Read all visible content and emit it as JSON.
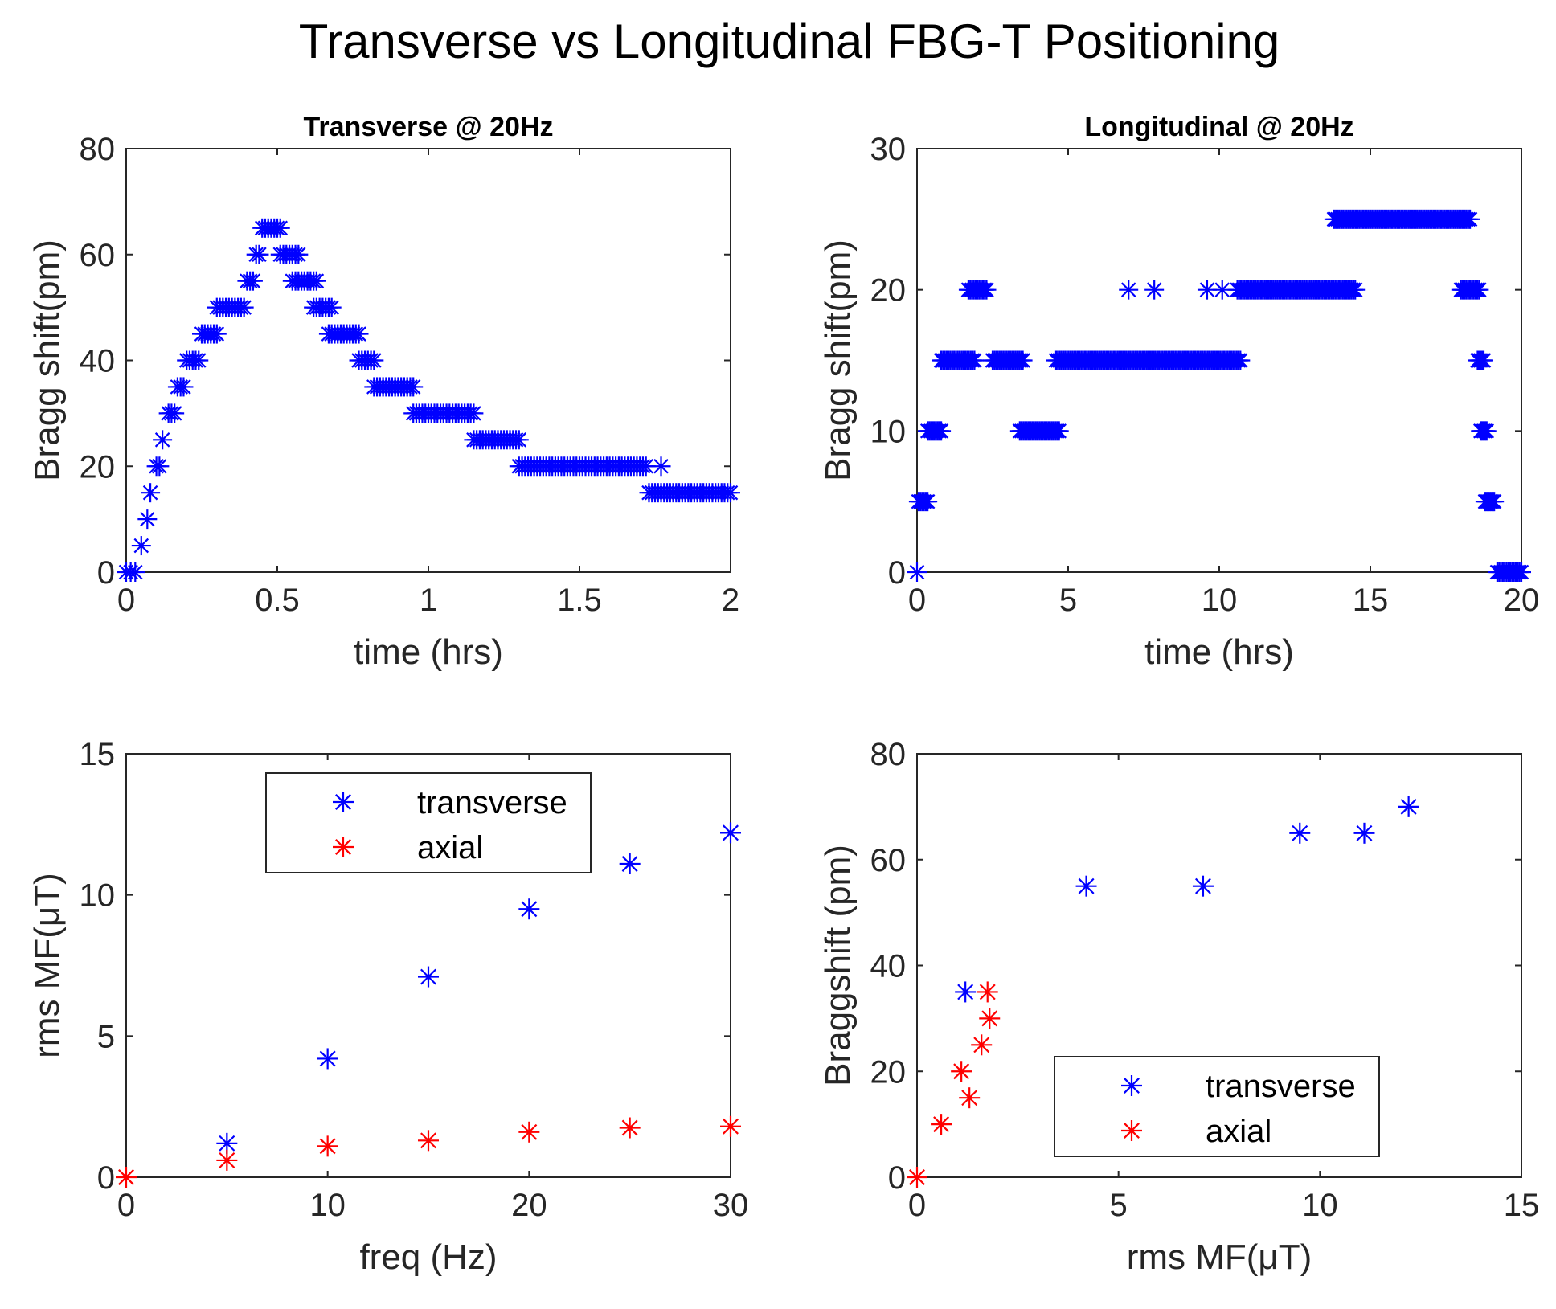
{
  "figure_title": "Transverse vs Longitudinal FBG-T Positioning",
  "colors": {
    "transverse": "#0000ff",
    "axial": "#ff0000",
    "axes": "#262626"
  },
  "chart_data": [
    {
      "type": "scatter",
      "title": "Transverse @ 20Hz",
      "xlabel": "time (hrs)",
      "ylabel": "Bragg shift(pm)",
      "xlim": [
        0,
        2
      ],
      "ylim": [
        0,
        80
      ],
      "xticks": [
        0,
        0.5,
        1,
        1.5,
        2
      ],
      "xtick_labels": [
        "0",
        "0.5",
        "1",
        "1.5",
        "2"
      ],
      "yticks": [
        0,
        20,
        40,
        60,
        80
      ],
      "ytick_labels": [
        "0",
        "20",
        "40",
        "60",
        "80"
      ],
      "series": [
        {
          "name": "transverse",
          "color": "#0000ff",
          "segments": [
            {
              "y": 0,
              "x_start": 0.0,
              "x_end": 0.03,
              "step": 0.015
            },
            {
              "y": 5,
              "x_start": 0.05,
              "x_end": 0.05,
              "step": 0.01
            },
            {
              "y": 10,
              "x_start": 0.07,
              "x_end": 0.07,
              "step": 0.01
            },
            {
              "y": 15,
              "x_start": 0.08,
              "x_end": 0.08,
              "step": 0.01
            },
            {
              "y": 20,
              "x_start": 0.1,
              "x_end": 0.11,
              "step": 0.01
            },
            {
              "y": 25,
              "x_start": 0.12,
              "x_end": 0.12,
              "step": 0.01
            },
            {
              "y": 30,
              "x_start": 0.14,
              "x_end": 0.16,
              "step": 0.01
            },
            {
              "y": 35,
              "x_start": 0.17,
              "x_end": 0.19,
              "step": 0.01
            },
            {
              "y": 40,
              "x_start": 0.2,
              "x_end": 0.24,
              "step": 0.01
            },
            {
              "y": 45,
              "x_start": 0.25,
              "x_end": 0.3,
              "step": 0.01
            },
            {
              "y": 50,
              "x_start": 0.3,
              "x_end": 0.39,
              "step": 0.01
            },
            {
              "y": 55,
              "x_start": 0.4,
              "x_end": 0.42,
              "step": 0.01
            },
            {
              "y": 60,
              "x_start": 0.43,
              "x_end": 0.44,
              "step": 0.01
            },
            {
              "y": 65,
              "x_start": 0.45,
              "x_end": 0.51,
              "step": 0.01
            },
            {
              "y": 60,
              "x_start": 0.51,
              "x_end": 0.57,
              "step": 0.01
            },
            {
              "y": 55,
              "x_start": 0.55,
              "x_end": 0.63,
              "step": 0.01
            },
            {
              "y": 50,
              "x_start": 0.62,
              "x_end": 0.68,
              "step": 0.01
            },
            {
              "y": 45,
              "x_start": 0.67,
              "x_end": 0.77,
              "step": 0.01
            },
            {
              "y": 40,
              "x_start": 0.77,
              "x_end": 0.82,
              "step": 0.01
            },
            {
              "y": 35,
              "x_start": 0.82,
              "x_end": 0.95,
              "step": 0.01
            },
            {
              "y": 30,
              "x_start": 0.95,
              "x_end": 1.15,
              "step": 0.01
            },
            {
              "y": 25,
              "x_start": 1.15,
              "x_end": 1.3,
              "step": 0.01
            },
            {
              "y": 20,
              "x_start": 1.3,
              "x_end": 1.72,
              "step": 0.01
            },
            {
              "y": 20,
              "x_start": 1.77,
              "x_end": 1.77,
              "step": 0.01
            },
            {
              "y": 15,
              "x_start": 1.73,
              "x_end": 2.0,
              "step": 0.01
            }
          ]
        }
      ]
    },
    {
      "type": "scatter",
      "title": "Longitudinal @ 20Hz",
      "xlabel": "time (hrs)",
      "ylabel": "Bragg shift(pm)",
      "xlim": [
        0,
        20
      ],
      "ylim": [
        0,
        30
      ],
      "xticks": [
        0,
        5,
        10,
        15,
        20
      ],
      "xtick_labels": [
        "0",
        "5",
        "10",
        "15",
        "20"
      ],
      "yticks": [
        0,
        10,
        20,
        30
      ],
      "ytick_labels": [
        "0",
        "10",
        "20",
        "30"
      ],
      "series": [
        {
          "name": "transverse",
          "color": "#0000ff",
          "segments": [
            {
              "y": 0,
              "x_start": 0.0,
              "x_end": 0.0,
              "step": 0.1
            },
            {
              "y": 5,
              "x_start": 0.05,
              "x_end": 0.35,
              "step": 0.06
            },
            {
              "y": 10,
              "x_start": 0.35,
              "x_end": 0.8,
              "step": 0.06
            },
            {
              "y": 15,
              "x_start": 0.8,
              "x_end": 1.9,
              "step": 0.06
            },
            {
              "y": 20,
              "x_start": 1.7,
              "x_end": 2.3,
              "step": 0.06
            },
            {
              "y": 15,
              "x_start": 2.5,
              "x_end": 3.5,
              "step": 0.06
            },
            {
              "y": 10,
              "x_start": 3.4,
              "x_end": 4.7,
              "step": 0.06
            },
            {
              "y": 15,
              "x_start": 4.6,
              "x_end": 10.7,
              "step": 0.06
            },
            {
              "y": 20,
              "x_start": 7.0,
              "x_end": 7.0,
              "step": 0.1
            },
            {
              "y": 20,
              "x_start": 7.85,
              "x_end": 7.85,
              "step": 0.1
            },
            {
              "y": 20,
              "x_start": 9.6,
              "x_end": 9.6,
              "step": 0.1
            },
            {
              "y": 20,
              "x_start": 10.1,
              "x_end": 10.1,
              "step": 0.1
            },
            {
              "y": 20,
              "x_start": 10.6,
              "x_end": 14.5,
              "step": 0.06
            },
            {
              "y": 25,
              "x_start": 13.8,
              "x_end": 18.3,
              "step": 0.06
            },
            {
              "y": 20,
              "x_start": 18.0,
              "x_end": 18.6,
              "step": 0.06
            },
            {
              "y": 15,
              "x_start": 18.55,
              "x_end": 18.75,
              "step": 0.05
            },
            {
              "y": 10,
              "x_start": 18.65,
              "x_end": 18.85,
              "step": 0.05
            },
            {
              "y": 5,
              "x_start": 18.8,
              "x_end": 19.1,
              "step": 0.05
            },
            {
              "y": 0,
              "x_start": 19.2,
              "x_end": 20.0,
              "step": 0.06
            }
          ]
        }
      ]
    },
    {
      "type": "scatter",
      "title": "",
      "xlabel": "freq (Hz)",
      "ylabel": "rms MF(μT)",
      "xlim": [
        0,
        30
      ],
      "ylim": [
        0,
        15
      ],
      "xticks": [
        0,
        10,
        20,
        30
      ],
      "xtick_labels": [
        "0",
        "10",
        "20",
        "30"
      ],
      "yticks": [
        0,
        5,
        10,
        15
      ],
      "ytick_labels": [
        "0",
        "5",
        "10",
        "15"
      ],
      "legend": {
        "position": "top-center",
        "entries": [
          "transverse",
          "axial"
        ]
      },
      "series": [
        {
          "name": "transverse",
          "color": "#0000ff",
          "x": [
            5,
            10,
            15,
            20,
            25,
            30
          ],
          "y": [
            1.2,
            4.2,
            7.1,
            9.5,
            11.1,
            12.2
          ]
        },
        {
          "name": "axial",
          "color": "#ff0000",
          "x": [
            0,
            5,
            10,
            15,
            20,
            25,
            30
          ],
          "y": [
            0,
            0.6,
            1.1,
            1.3,
            1.6,
            1.75,
            1.8
          ]
        }
      ]
    },
    {
      "type": "scatter",
      "title": "",
      "xlabel": "rms MF(μT)",
      "ylabel": "Braggshift (pm)",
      "xlim": [
        0,
        15
      ],
      "ylim": [
        0,
        80
      ],
      "xticks": [
        0,
        5,
        10,
        15
      ],
      "xtick_labels": [
        "0",
        "5",
        "10",
        "15"
      ],
      "yticks": [
        0,
        20,
        40,
        60,
        80
      ],
      "ytick_labels": [
        "0",
        "20",
        "40",
        "60",
        "80"
      ],
      "legend": {
        "position": "bottom-right",
        "entries": [
          "transverse",
          "axial"
        ]
      },
      "series": [
        {
          "name": "transverse",
          "color": "#0000ff",
          "x": [
            1.2,
            4.2,
            7.1,
            9.5,
            11.1,
            12.2
          ],
          "y": [
            35,
            55,
            55,
            65,
            65,
            70
          ]
        },
        {
          "name": "axial",
          "color": "#ff0000",
          "x": [
            0,
            0.6,
            1.1,
            1.3,
            1.6,
            1.75,
            1.8
          ],
          "y": [
            0,
            10,
            20,
            15,
            25,
            35,
            30
          ]
        }
      ]
    }
  ]
}
